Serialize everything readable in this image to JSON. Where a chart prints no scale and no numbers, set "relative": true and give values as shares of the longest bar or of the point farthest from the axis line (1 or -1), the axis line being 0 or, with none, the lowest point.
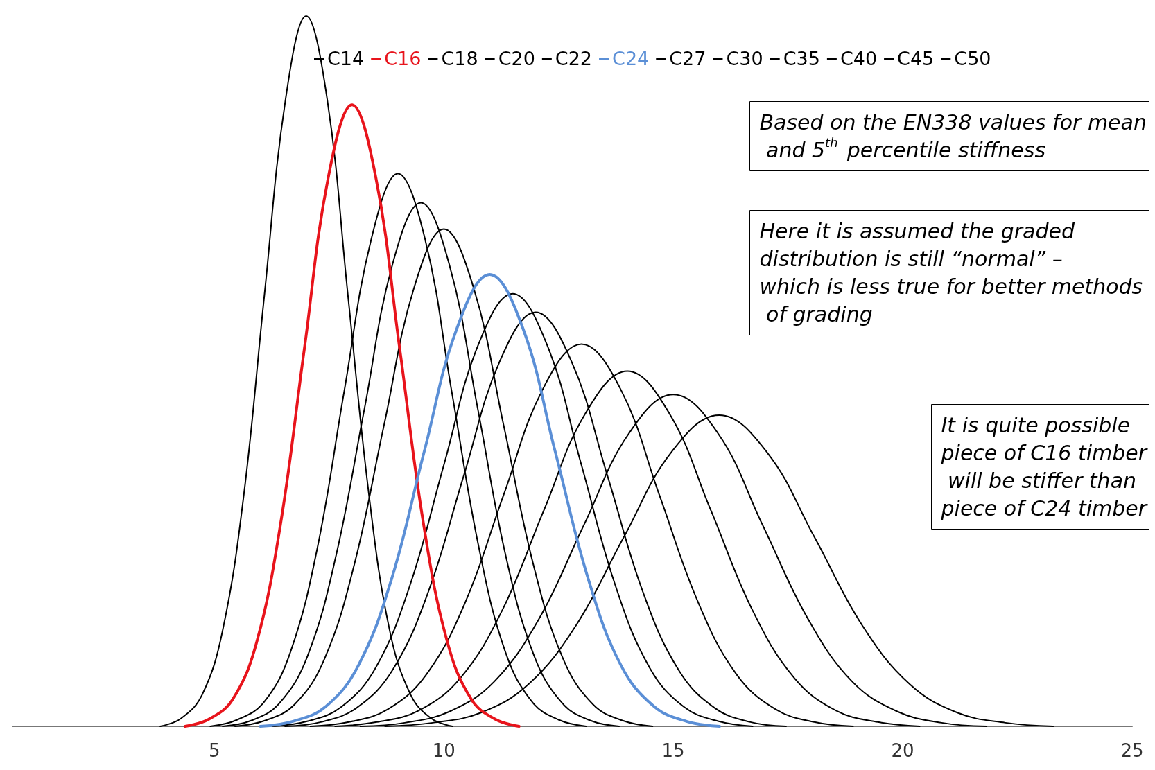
{
  "chart_data": {
    "type": "line",
    "relative": true,
    "legend": "top",
    "grid": false,
    "marker": "none",
    "line_style": "solid",
    "xlim": [
      0.6,
      25
    ],
    "xticks": [
      5,
      10,
      15,
      20,
      25
    ],
    "tick_labels": "x",
    "annotations": [
      "Based on the EN338 values for mean and 5$^{th}$ percentile stiffness",
      "Here it is assumed the graded distribution is still “normal” – which is less true for better methods of grading",
      "It is quite possible piece of C16 timber will be stiffer than piece of C24 timber"
    ],
    "series": [
      {
        "name": "C14",
        "color": "#000000",
        "x": [
          3.82,
          4.27,
          4.73,
          5.18,
          5.64,
          6.09,
          6.55,
          7,
          7.46,
          7.91,
          8.37,
          8.82,
          9.28,
          9.73,
          10.19
        ],
        "values": [
          0,
          0.011,
          0.044,
          0.135,
          0.325,
          0.607,
          0.882,
          1,
          0.882,
          0.607,
          0.325,
          0.135,
          0.044,
          0.011,
          0
        ]
      },
      {
        "name": "C16",
        "color": "#e8141c",
        "x": [
          4.36,
          4.88,
          5.4,
          5.92,
          6.44,
          6.96,
          7.48,
          8,
          8.52,
          9.04,
          9.56,
          10.08,
          10.6,
          11.12,
          11.64
        ],
        "values": [
          0,
          0.01,
          0.038,
          0.118,
          0.284,
          0.531,
          0.772,
          0.875,
          0.772,
          0.531,
          0.284,
          0.118,
          0.038,
          0.01,
          0
        ]
      },
      {
        "name": "C18",
        "color": "#000000",
        "x": [
          4.91,
          5.49,
          6.08,
          6.66,
          7.25,
          7.83,
          8.42,
          9,
          9.59,
          10.17,
          10.76,
          11.34,
          11.93,
          12.51,
          13.1
        ],
        "values": [
          0,
          0.009,
          0.034,
          0.105,
          0.253,
          0.472,
          0.686,
          0.778,
          0.686,
          0.472,
          0.253,
          0.105,
          0.034,
          0.009,
          0
        ]
      },
      {
        "name": "C20",
        "color": "#000000",
        "x": [
          5.18,
          5.8,
          6.41,
          7.03,
          7.65,
          8.27,
          8.88,
          9.5,
          10.12,
          10.74,
          11.35,
          11.97,
          12.59,
          13.2,
          13.82
        ],
        "values": [
          0,
          0.008,
          0.032,
          0.099,
          0.24,
          0.447,
          0.65,
          0.737,
          0.65,
          0.447,
          0.24,
          0.099,
          0.032,
          0.008,
          0
        ]
      },
      {
        "name": "C22",
        "color": "#000000",
        "x": [
          5.45,
          6.1,
          6.75,
          7.4,
          8.05,
          8.7,
          9.35,
          10,
          10.65,
          11.3,
          11.95,
          12.6,
          13.25,
          13.9,
          14.55
        ],
        "values": [
          0,
          0.008,
          0.031,
          0.095,
          0.228,
          0.425,
          0.617,
          0.7,
          0.617,
          0.425,
          0.228,
          0.095,
          0.031,
          0.008,
          0
        ]
      },
      {
        "name": "C24",
        "color": "#5b8fd6",
        "x": [
          6,
          6.71,
          7.43,
          8.14,
          8.86,
          9.57,
          10.29,
          11,
          11.72,
          12.43,
          13.15,
          13.86,
          14.58,
          15.29,
          16.01
        ],
        "values": [
          0,
          0.007,
          0.028,
          0.086,
          0.207,
          0.386,
          0.561,
          0.636,
          0.561,
          0.386,
          0.207,
          0.086,
          0.028,
          0.007,
          0
        ]
      },
      {
        "name": "C27",
        "color": "#000000",
        "x": [
          6.27,
          7.02,
          7.76,
          8.51,
          9.26,
          10.01,
          10.75,
          11.5,
          12.25,
          12.99,
          13.74,
          14.49,
          15.24,
          15.99,
          16.73
        ],
        "values": [
          0,
          0.007,
          0.027,
          0.082,
          0.198,
          0.37,
          0.537,
          0.609,
          0.537,
          0.37,
          0.198,
          0.082,
          0.027,
          0.007,
          0
        ]
      },
      {
        "name": "C30",
        "color": "#000000",
        "x": [
          6.54,
          7.32,
          8.1,
          8.88,
          9.66,
          10.44,
          11.22,
          12,
          12.78,
          13.56,
          14.34,
          15.12,
          15.9,
          16.68,
          17.46
        ],
        "values": [
          0,
          0.006,
          0.026,
          0.079,
          0.189,
          0.354,
          0.514,
          0.583,
          0.514,
          0.354,
          0.189,
          0.079,
          0.026,
          0.006,
          0
        ]
      },
      {
        "name": "C35",
        "color": "#000000",
        "x": [
          7.09,
          7.93,
          8.78,
          9.62,
          10.47,
          11.31,
          12.16,
          13,
          13.85,
          14.69,
          15.54,
          16.38,
          17.23,
          18.07,
          18.92
        ],
        "values": [
          0,
          0.006,
          0.024,
          0.073,
          0.175,
          0.327,
          0.475,
          0.538,
          0.475,
          0.327,
          0.175,
          0.073,
          0.024,
          0.006,
          0
        ]
      },
      {
        "name": "C40",
        "color": "#000000",
        "x": [
          7.63,
          8.54,
          9.45,
          10.36,
          11.27,
          12.18,
          13.09,
          14,
          14.91,
          15.82,
          16.73,
          17.64,
          18.55,
          19.46,
          20.37
        ],
        "values": [
          0,
          0.006,
          0.022,
          0.068,
          0.163,
          0.304,
          0.441,
          0.5,
          0.441,
          0.304,
          0.163,
          0.068,
          0.022,
          0.006,
          0
        ]
      },
      {
        "name": "C45",
        "color": "#000000",
        "x": [
          8.18,
          9.15,
          10.13,
          11.1,
          12.08,
          13.05,
          14.03,
          15,
          15.98,
          16.95,
          17.93,
          18.9,
          19.88,
          20.85,
          21.83
        ],
        "values": [
          0,
          0.005,
          0.021,
          0.063,
          0.152,
          0.283,
          0.412,
          0.467,
          0.412,
          0.283,
          0.152,
          0.063,
          0.021,
          0.005,
          0
        ]
      },
      {
        "name": "C50",
        "color": "#000000",
        "x": [
          8.72,
          9.76,
          10.8,
          11.84,
          12.88,
          13.92,
          14.96,
          16,
          17.04,
          18.08,
          19.12,
          20.16,
          21.2,
          22.24,
          23.28
        ],
        "values": [
          0,
          0.005,
          0.019,
          0.059,
          0.142,
          0.266,
          0.386,
          0.438,
          0.386,
          0.266,
          0.142,
          0.059,
          0.019,
          0.005,
          0
        ]
      }
    ]
  }
}
